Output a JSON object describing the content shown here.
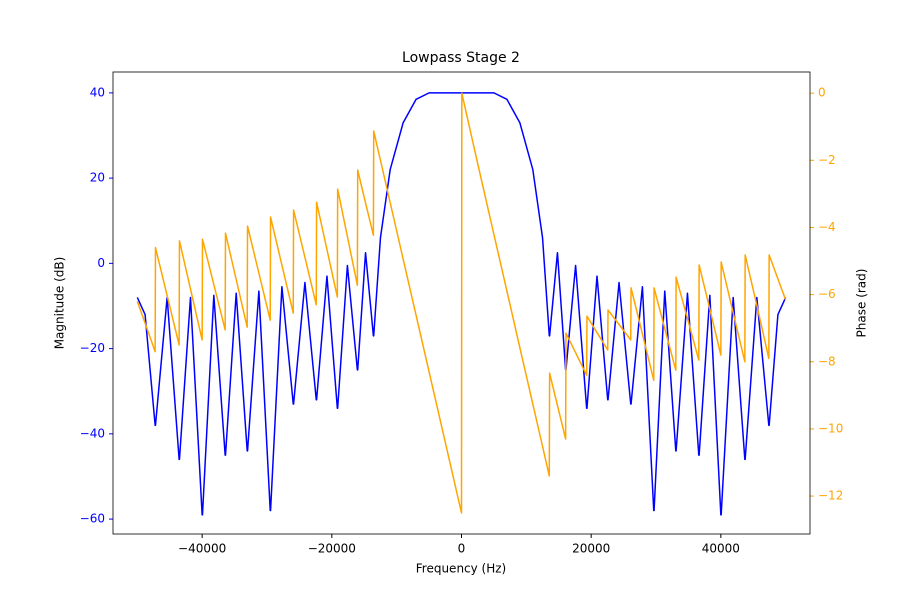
{
  "chart_data": {
    "type": "line",
    "title": "Lowpass Stage 2",
    "xlabel": "Frequency (Hz)",
    "ylabel": "Magnitude (dB)",
    "y2label": "Phase (rad)",
    "x": [
      -50000,
      -48800,
      -47250,
      -47200,
      -45400,
      -43550,
      -43500,
      -41800,
      -40000,
      -39950,
      -38200,
      -36450,
      -36400,
      -34750,
      -33050,
      -33000,
      -31250,
      -29500,
      -29450,
      -27700,
      -25950,
      -25900,
      -24150,
      -22400,
      -22350,
      -20750,
      -19150,
      -19100,
      -17600,
      -16060,
      -16010,
      -14800,
      -13590,
      -13540,
      -12500,
      -11000,
      -9000,
      -7000,
      -5000,
      -2500,
      0,
      50,
      2500,
      5000,
      7000,
      9000,
      11000,
      12500,
      13540,
      13590,
      14800,
      16060,
      16110,
      17600,
      19300,
      19350,
      20900,
      22550,
      22600,
      24300,
      26100,
      26150,
      27900,
      29650,
      29700,
      31350,
      33050,
      33100,
      34850,
      36600,
      36650,
      38300,
      40000,
      40050,
      41900,
      43700,
      43750,
      45550,
      47400,
      47450,
      48800,
      50000
    ],
    "series": [
      {
        "color": "blue",
        "values": [
          -8,
          -12,
          -38,
          -38,
          -8,
          -46,
          -46,
          -8,
          -59,
          -59,
          -7.5,
          -45,
          -45,
          -7,
          -44,
          -44,
          -6.5,
          -58,
          -58,
          -5.5,
          -33,
          -33,
          -4.5,
          -32,
          -32,
          -3,
          -34,
          -34,
          -0.5,
          -25,
          -25,
          2.5,
          -17,
          -17,
          6,
          22,
          33,
          38.5,
          40,
          40,
          40,
          40,
          40,
          40,
          38.5,
          33,
          22,
          6,
          -17,
          -17,
          2.5,
          -25,
          -25,
          -0.5,
          -34,
          -34,
          -3,
          -32,
          -32,
          -4.5,
          -33,
          -33,
          -5.5,
          -58,
          -58,
          -6.5,
          -44,
          -44,
          -7,
          -45,
          -45,
          -7.5,
          -59,
          -59,
          -8,
          -46,
          -46,
          -8,
          -38,
          -38,
          -12,
          -8
        ]
      },
      {
        "color": "orange",
        "axis": "y2",
        "values": [
          -6.2,
          -6.85,
          -7.7,
          -4.6,
          -6.03,
          -7.5,
          -4.4,
          -5.83,
          -7.35,
          -4.35,
          -5.7,
          -7.05,
          -4.17,
          -5.55,
          -6.97,
          -3.96,
          -5.36,
          -6.76,
          -3.69,
          -5.12,
          -6.55,
          -3.48,
          -4.89,
          -6.3,
          -3.25,
          -4.66,
          -6.07,
          -2.86,
          -4.27,
          -5.72,
          -2.29,
          -3.27,
          -4.23,
          -1.13,
          -2.0,
          -3.26,
          -4.94,
          -6.62,
          -8.3,
          -10.4,
          -12.5,
          0,
          -2.1,
          -4.21,
          -5.89,
          -7.58,
          -9.26,
          -10.52,
          -11.4,
          -8.34,
          -9.3,
          -10.3,
          -7.15,
          -7.73,
          -8.4,
          -6.64,
          -7.13,
          -7.65,
          -6.46,
          -6.89,
          -7.35,
          -5.8,
          -7.17,
          -8.55,
          -5.8,
          -7.01,
          -8.25,
          -5.48,
          -6.71,
          -7.95,
          -5.12,
          -6.43,
          -7.8,
          -5.03,
          -6.54,
          -8.0,
          -4.82,
          -6.32,
          -7.9,
          -4.82,
          -5.53,
          -6.16
        ]
      }
    ],
    "xlim": [
      -53750,
      53750
    ],
    "ylim": [
      -63.5,
      44.9
    ],
    "y2lim": [
      -13.13,
      0.63
    ],
    "xticks": [
      {
        "value": -40000,
        "label": "−40000"
      },
      {
        "value": -20000,
        "label": "−20000"
      },
      0,
      20000,
      40000
    ],
    "yticks": [
      {
        "value": -60,
        "label": "−60"
      },
      {
        "value": -40,
        "label": "−40"
      },
      {
        "value": -20,
        "label": "−20"
      },
      0,
      20,
      40
    ],
    "y2ticks": [
      {
        "value": -12,
        "label": "−12"
      },
      {
        "value": -10,
        "label": "−10"
      },
      {
        "value": -8,
        "label": "−8"
      },
      {
        "value": -6,
        "label": "−6"
      },
      {
        "value": -4,
        "label": "−4"
      },
      {
        "value": -2,
        "label": "−2"
      },
      0
    ],
    "grid": false
  }
}
